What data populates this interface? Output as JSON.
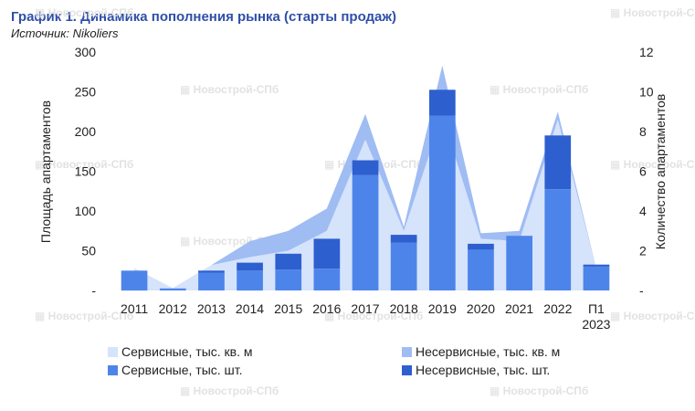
{
  "title": "График 1. Динамика пополнения рынка (старты продаж)",
  "source": "Источник: Nikoliers",
  "watermark": "Новострой-СПб",
  "colors": {
    "service_area": "#d5e3fb",
    "nonservice_area": "#9fbcf3",
    "service_units": "#4d84ea",
    "nonservice_units": "#2e5fcf",
    "axis_text": "#222222",
    "watermark": "#e2e2e2"
  },
  "chart_data": {
    "type": "bar",
    "categories": [
      [
        "2011"
      ],
      [
        "2012"
      ],
      [
        "2013"
      ],
      [
        "2014"
      ],
      [
        "2015"
      ],
      [
        "2016"
      ],
      [
        "2017"
      ],
      [
        "2018"
      ],
      [
        "2019"
      ],
      [
        "2020"
      ],
      [
        "2021"
      ],
      [
        "2022"
      ],
      [
        "П1",
        "2023"
      ]
    ],
    "ylabel": "Площадь апартаментов",
    "y2label": "Количество апартаментов",
    "ylim": [
      0,
      300
    ],
    "y2lim": [
      0,
      12
    ],
    "yticks": [
      "-",
      "50",
      "100",
      "150",
      "200",
      "250",
      "300"
    ],
    "y2ticks": [
      "-",
      "2",
      "4",
      "6",
      "8",
      "10",
      "12"
    ],
    "legend_position": "bottom",
    "series": [
      {
        "name": "Сервисные, тыс. кв. м",
        "type": "area",
        "axis": "left",
        "values": [
          28,
          3,
          32,
          42,
          50,
          75,
          190,
          75,
          220,
          65,
          62,
          215,
          28
        ]
      },
      {
        "name": "Несервисные, тыс. кв. м",
        "type": "area",
        "axis": "left",
        "values": [
          0,
          0,
          0,
          20,
          25,
          28,
          32,
          5,
          63,
          7,
          13,
          10,
          0
        ]
      },
      {
        "name": "Сервисные, тыс. шт.",
        "type": "bar",
        "axis": "right",
        "values": [
          1.0,
          0.1,
          0.9,
          1.0,
          1.05,
          1.1,
          5.8,
          2.4,
          8.8,
          2.05,
          2.75,
          5.1,
          1.2
        ]
      },
      {
        "name": "Несервисные, тыс. шт.",
        "type": "bar",
        "axis": "right",
        "values": [
          0,
          0,
          0.1,
          0.4,
          0.8,
          1.5,
          0.75,
          0.4,
          1.3,
          0.3,
          0,
          2.7,
          0.1
        ]
      }
    ]
  }
}
